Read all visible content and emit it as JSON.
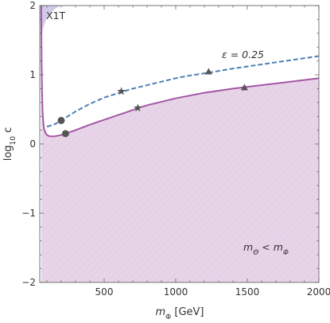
{
  "chart_data": {
    "type": "line",
    "xlabel_base": "m",
    "xlabel_sub": "Φ",
    "xlabel_unit": " [GeV]",
    "ylabel_base": "log",
    "ylabel_sub": "10",
    "ylabel_var": " c",
    "xlim": [
      50,
      2000
    ],
    "ylim": [
      -2,
      2
    ],
    "x_ticks": [
      500,
      1000,
      1500,
      2000
    ],
    "y_ticks": [
      -2,
      -1,
      0,
      1,
      2
    ],
    "grid": false,
    "colors": {
      "excluded_fill": "#e6d2e6",
      "boundary": "#a557a7",
      "epsilon_curve": "#4f7fb5",
      "x1t_fill": "#cfcbe6",
      "marker": "#555555"
    },
    "annotations": {
      "x1t": "X1T",
      "epsilon_base": "ε = 0.25",
      "region_m": "m",
      "region_sub1": "Θ",
      "region_lt": " < m",
      "region_sub2": "Φ"
    },
    "series": [
      {
        "style": "solid",
        "x": [
          60,
          63,
          66,
          70,
          75,
          80,
          90,
          100,
          120,
          150,
          200,
          230,
          300,
          400,
          500,
          600,
          700,
          735,
          800,
          900,
          1000,
          1200,
          1400,
          1480,
          1600,
          1800,
          2000
        ],
        "y": [
          2.0,
          1.2,
          0.75,
          0.45,
          0.3,
          0.22,
          0.16,
          0.13,
          0.11,
          0.11,
          0.13,
          0.15,
          0.2,
          0.28,
          0.35,
          0.42,
          0.49,
          0.52,
          0.56,
          0.61,
          0.66,
          0.74,
          0.8,
          0.82,
          0.85,
          0.9,
          0.95
        ]
      },
      {
        "style": "dashed",
        "x": [
          100,
          150,
          200,
          300,
          400,
          500,
          620,
          700,
          800,
          900,
          1000,
          1100,
          1230,
          1400,
          1600,
          1800,
          2000
        ],
        "y": [
          0.25,
          0.28,
          0.34,
          0.47,
          0.58,
          0.67,
          0.75,
          0.8,
          0.85,
          0.9,
          0.95,
          0.99,
          1.03,
          1.09,
          1.15,
          1.21,
          1.27
        ]
      }
    ],
    "markers": [
      {
        "shape": "circle",
        "x": 200,
        "y": 0.34
      },
      {
        "shape": "circle",
        "x": 230,
        "y": 0.15
      },
      {
        "shape": "star",
        "x": 620,
        "y": 0.76
      },
      {
        "shape": "star",
        "x": 735,
        "y": 0.52
      },
      {
        "shape": "triangle",
        "x": 1230,
        "y": 1.04
      },
      {
        "shape": "triangle",
        "x": 1480,
        "y": 0.81
      }
    ]
  }
}
